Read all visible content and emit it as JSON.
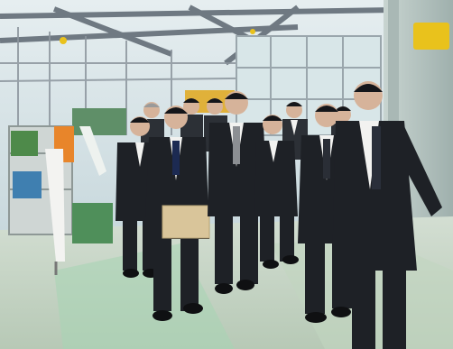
{
  "photo": {
    "subject": "group-walking-in-greenhouse",
    "colors": {
      "roof_frame": "#7d8690",
      "sky_glass": "#cfe0e6",
      "right_wall": "#b9c9c6",
      "floor": "#c9d9c7",
      "floor_stripe": "#8fc9a3",
      "suit_dark": "#1e2126",
      "suit_mid": "#2c3036",
      "skin": "#d6b39a",
      "hair": "#15161a",
      "shirt": "#f2f2f0",
      "envelope": "#d9c59a",
      "yellow_accent": "#e9c21c",
      "orange_accent": "#e8852a",
      "plant_green": "#4e8a4a",
      "cart_green": "#4f8f5a"
    }
  }
}
